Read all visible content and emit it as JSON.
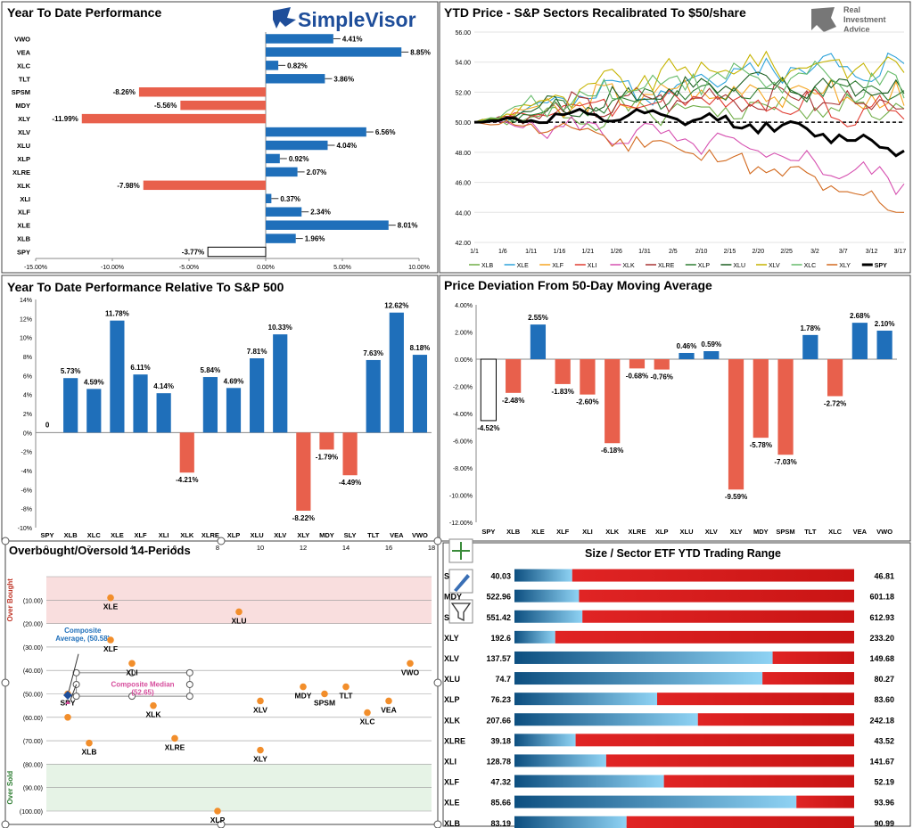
{
  "logos": {
    "simplevisor": "SimpleVisor",
    "ria_line1": "Real",
    "ria_line2": "Investment",
    "ria_line3": "Advice"
  },
  "chart_data": [
    {
      "id": "ytd",
      "type": "bar",
      "orientation": "horizontal",
      "title": "Year To Date Performance",
      "categories": [
        "VWO",
        "VEA",
        "XLC",
        "TLT",
        "SPSM",
        "MDY",
        "XLY",
        "XLV",
        "XLU",
        "XLP",
        "XLRE",
        "XLK",
        "XLI",
        "XLF",
        "XLE",
        "XLB",
        "SPY"
      ],
      "values": [
        4.41,
        8.85,
        0.82,
        3.86,
        -8.26,
        -5.56,
        -11.99,
        6.56,
        4.04,
        0.92,
        2.07,
        -7.98,
        0.37,
        2.34,
        8.01,
        1.96,
        -3.77
      ],
      "labels": [
        "4.41%",
        "8.85%",
        "0.82%",
        "3.86%",
        "-8.26%",
        "-5.56%",
        "-11.99%",
        "6.56%",
        "4.04%",
        "0.92%",
        "2.07%",
        "-7.98%",
        "0.37%",
        "2.34%",
        "8.01%",
        "1.96%",
        "-3.77%"
      ],
      "xlim": [
        -15,
        10
      ],
      "xticks": [
        -15,
        -10,
        -5,
        0,
        5,
        10
      ],
      "xtick_labels": [
        "-15.00%",
        "-10.00%",
        "-5.00%",
        "0.00%",
        "5.00%",
        "10.00%"
      ],
      "colors": {
        "pos": "#1f6fba",
        "neg": "#e8604c",
        "spy": "#ffffff"
      }
    },
    {
      "id": "sectors",
      "type": "line",
      "title": "YTD Price - S&P Sectors Recalibrated To $50/share",
      "ylim": [
        42,
        56
      ],
      "yticks": [
        42,
        44,
        46,
        48,
        50,
        52,
        54,
        56
      ],
      "ytick_labels": [
        "42.00",
        "44.00",
        "46.00",
        "48.00",
        "50.00",
        "52.00",
        "54.00",
        "56.00"
      ],
      "xtick_labels": [
        "1/1",
        "1/6",
        "1/11",
        "1/16",
        "1/21",
        "1/26",
        "1/31",
        "2/5",
        "2/10",
        "2/15",
        "2/20",
        "2/25",
        "3/2",
        "3/7",
        "3/12",
        "3/17"
      ],
      "n_points": 54,
      "reference": 50,
      "series": [
        {
          "name": "XLB",
          "color": "#70ad47",
          "end": 50.9,
          "amp": 1.3,
          "trend": 0.2,
          "seed": 1
        },
        {
          "name": "XLE",
          "color": "#2ea3da",
          "end": 53.9,
          "amp": 1.6,
          "trend": 0.6,
          "seed": 2
        },
        {
          "name": "XLF",
          "color": "#f5a623",
          "end": 51.1,
          "amp": 1.6,
          "trend": 0.8,
          "seed": 3
        },
        {
          "name": "XLI",
          "color": "#e03c31",
          "end": 50.2,
          "amp": 1.5,
          "trend": 0.7,
          "seed": 4
        },
        {
          "name": "XLK",
          "color": "#d650b0",
          "end": 45.9,
          "amp": 1.3,
          "trend": 0.2,
          "seed": 5
        },
        {
          "name": "XLRE",
          "color": "#a83232",
          "end": 50.9,
          "amp": 1.4,
          "trend": 0.6,
          "seed": 6
        },
        {
          "name": "XLP",
          "color": "#2e7d32",
          "end": 52.1,
          "amp": 1.2,
          "trend": 0.5,
          "seed": 7
        },
        {
          "name": "XLU",
          "color": "#1b5e20",
          "end": 51.9,
          "amp": 1.4,
          "trend": 0.7,
          "seed": 8
        },
        {
          "name": "XLV",
          "color": "#c5b300",
          "end": 53.3,
          "amp": 1.5,
          "trend": 1.0,
          "seed": 9
        },
        {
          "name": "XLC",
          "color": "#66bb6a",
          "end": 51.6,
          "amp": 1.6,
          "trend": 1.1,
          "seed": 10
        },
        {
          "name": "XLY",
          "color": "#d2691e",
          "end": 44.0,
          "amp": 1.2,
          "trend": 0.3,
          "seed": 11
        },
        {
          "name": "SPY",
          "color": "#000000",
          "end": 48.1,
          "amp": 0.7,
          "trend": 0.5,
          "seed": 12,
          "bold": true
        }
      ]
    },
    {
      "id": "rel",
      "type": "bar",
      "title": "Year To Date Performance Relative To S&P 500",
      "categories": [
        "SPY",
        "XLB",
        "XLC",
        "XLE",
        "XLF",
        "XLI",
        "XLK",
        "XLRE",
        "XLP",
        "XLU",
        "XLV",
        "XLY",
        "MDY",
        "SLY",
        "TLT",
        "VEA",
        "VWO"
      ],
      "values": [
        0,
        5.73,
        4.59,
        11.78,
        6.11,
        4.14,
        -4.21,
        5.84,
        4.69,
        7.81,
        10.33,
        -8.22,
        -1.79,
        -4.49,
        7.63,
        12.62,
        8.18
      ],
      "labels": [
        "0",
        "5.73%",
        "4.59%",
        "11.78%",
        "6.11%",
        "4.14%",
        "-4.21%",
        "5.84%",
        "4.69%",
        "7.81%",
        "10.33%",
        "-8.22%",
        "-1.79%",
        "-4.49%",
        "7.63%",
        "12.62%",
        "8.18%"
      ],
      "ylim": [
        -10,
        14
      ],
      "yticks": [
        -10,
        -8,
        -6,
        -4,
        -2,
        0,
        2,
        4,
        6,
        8,
        10,
        12,
        14
      ],
      "ytick_labels": [
        "-10%",
        "-8%",
        "-6%",
        "-4%",
        "-2%",
        "0%",
        "2%",
        "4%",
        "6%",
        "8%",
        "10%",
        "12%",
        "14%"
      ],
      "colors": {
        "pos": "#1f6fba",
        "neg": "#e8604c"
      }
    },
    {
      "id": "dev",
      "type": "bar",
      "title": "Price Deviation From 50-Day Moving Average",
      "categories": [
        "SPY",
        "XLB",
        "XLE",
        "XLF",
        "XLI",
        "XLK",
        "XLRE",
        "XLP",
        "XLU",
        "XLV",
        "XLY",
        "MDY",
        "SPSM",
        "TLT",
        "XLC",
        "VEA",
        "VWO"
      ],
      "values": [
        -4.52,
        -2.48,
        2.55,
        -1.83,
        -2.6,
        -6.18,
        -0.68,
        -0.76,
        0.46,
        0.59,
        -9.59,
        -5.78,
        -7.03,
        1.78,
        -2.72,
        2.68,
        2.1
      ],
      "labels": [
        "-4.52%",
        "-2.48%",
        "2.55%",
        "-1.83%",
        "-2.60%",
        "-6.18%",
        "-0.68%",
        "-0.76%",
        "0.46%",
        "0.59%",
        "-9.59%",
        "-5.78%",
        "-7.03%",
        "1.78%",
        "-2.72%",
        "2.68%",
        "2.10%"
      ],
      "ylim": [
        -12,
        4
      ],
      "yticks": [
        -12,
        -10,
        -8,
        -6,
        -4,
        -2,
        0,
        2,
        4
      ],
      "ytick_labels": [
        "-12.00%",
        "-10.00%",
        "-8.00%",
        "-6.00%",
        "-4.00%",
        "-2.00%",
        "0.00%",
        "2.00%",
        "4.00%"
      ],
      "colors": {
        "pos": "#1f6fba",
        "neg": "#e8604c",
        "spy": "#ffffff"
      }
    },
    {
      "id": "obos",
      "type": "scatter",
      "title": "Overbought/Oversold 14-Periods",
      "xlim": [
        0,
        18
      ],
      "xticks": [
        0,
        2,
        4,
        6,
        8,
        10,
        12,
        14,
        16,
        18
      ],
      "ylim": [
        0,
        -100
      ],
      "yticks": [
        -10,
        -20,
        -30,
        -40,
        -50,
        -60,
        -70,
        -80,
        -90,
        -100
      ],
      "ytick_labels": [
        "(10.00)",
        "(20.00)",
        "(30.00)",
        "(40.00)",
        "(50.00)",
        "(60.00)",
        "(70.00)",
        "(80.00)",
        "(90.00)",
        "(100.00)"
      ],
      "zone_top_label": "Over Bought",
      "zone_bottom_label": "Over Sold",
      "points": [
        {
          "label": "XLE",
          "x": 3,
          "y": -9
        },
        {
          "label": "XLU",
          "x": 9,
          "y": -15
        },
        {
          "label": "XLF",
          "x": 3,
          "y": -27
        },
        {
          "label": "XLI",
          "x": 4,
          "y": -37
        },
        {
          "label": "VWO",
          "x": 17,
          "y": -37
        },
        {
          "label": "SPY",
          "x": 1,
          "y": -50
        },
        {
          "label": "XLK",
          "x": 5,
          "y": -55
        },
        {
          "label": "XLV",
          "x": 10,
          "y": -53
        },
        {
          "label": "MDY",
          "x": 12,
          "y": -47
        },
        {
          "label": "SPSM",
          "x": 13,
          "y": -50
        },
        {
          "label": "TLT",
          "x": 14,
          "y": -47
        },
        {
          "label": "XLC",
          "x": 15,
          "y": -58
        },
        {
          "label": "VEA",
          "x": 16,
          "y": -53
        },
        {
          "label": "XLB",
          "x": 2,
          "y": -71
        },
        {
          "label": "XLRE",
          "x": 6,
          "y": -69
        },
        {
          "label": "XLY",
          "x": 10,
          "y": -74
        },
        {
          "label": "XLP",
          "x": 8,
          "y": -100
        },
        {
          "label": "",
          "x": 1,
          "y": -60
        }
      ],
      "composite_average_label": "Composite\nAverage,  (50.58)",
      "composite_average": {
        "x": 1,
        "y": -50.58
      },
      "composite_median_label": "Composite Median\n(52.65)",
      "composite_median": {
        "x": 1,
        "y": -52.65
      }
    },
    {
      "id": "range",
      "type": "table",
      "title": "Size / Sector ETF YTD Trading Range",
      "rows": [
        {
          "name": "SPSM",
          "low": "40.03",
          "high": "46.81",
          "frac": 0.17
        },
        {
          "name": "MDY",
          "low": "522.96",
          "high": "601.18",
          "frac": 0.19
        },
        {
          "name": "SPY",
          "low": "551.42",
          "high": "612.93",
          "frac": 0.2
        },
        {
          "name": "XLY",
          "low": "192.6",
          "high": "233.20",
          "frac": 0.12
        },
        {
          "name": "XLV",
          "low": "137.57",
          "high": "149.68",
          "frac": 0.76
        },
        {
          "name": "XLU",
          "low": "74.7",
          "high": "80.27",
          "frac": 0.73
        },
        {
          "name": "XLP",
          "low": "76.23",
          "high": "83.60",
          "frac": 0.42
        },
        {
          "name": "XLK",
          "low": "207.66",
          "high": "242.18",
          "frac": 0.54
        },
        {
          "name": "XLRE",
          "low": "39.18",
          "high": "43.52",
          "frac": 0.18
        },
        {
          "name": "XLI",
          "low": "128.78",
          "high": "141.67",
          "frac": 0.27
        },
        {
          "name": "XLF",
          "low": "47.32",
          "high": "52.19",
          "frac": 0.44
        },
        {
          "name": "XLE",
          "low": "85.66",
          "high": "93.96",
          "frac": 0.83
        },
        {
          "name": "XLB",
          "low": "83.19",
          "high": "90.99",
          "frac": 0.33
        }
      ]
    }
  ]
}
